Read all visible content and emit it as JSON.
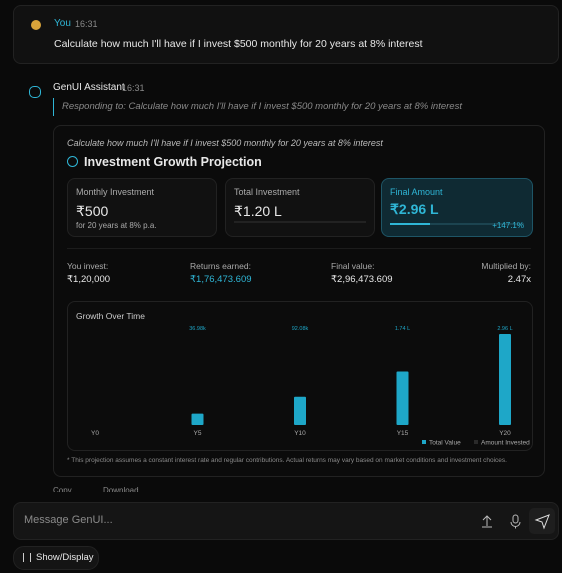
{
  "user": {
    "name": "You",
    "time": "16:31",
    "message": "Calculate how much I'll have if I invest $500 monthly for 20 years at 8% interest"
  },
  "assistant": {
    "name": "GenUI Assistant",
    "time": "16:31",
    "responding_to": "Responding to: Calculate how much I'll have if I invest $500 monthly for 20 years at 8% interest"
  },
  "card": {
    "query": "Calculate how much I'll have if I invest $500 monthly for 20 years at 8% interest",
    "title": "Investment Growth Projection",
    "metrics": [
      {
        "label": "Monthly Investment",
        "value": "₹500",
        "sub": "for 20 years at 8% p.a."
      },
      {
        "label": "Total Investment",
        "value": "₹1.20 L"
      },
      {
        "label": "Final Amount",
        "value": "₹2.96 L",
        "sub": "+147.1%"
      }
    ],
    "stats": [
      {
        "label": "You invest:",
        "value": "₹1,20,000"
      },
      {
        "label": "Returns earned:",
        "value": "₹1,76,473.609"
      },
      {
        "label": "Final value:",
        "value": "₹2,96,473.609"
      },
      {
        "label": "Multiplied by:",
        "value": "2.47x"
      }
    ],
    "chart": {
      "type": "bar",
      "title": "Growth Over Time",
      "categories": [
        "Y0",
        "Y5",
        "Y10",
        "Y15",
        "Y20"
      ],
      "values": [
        0,
        36980,
        92080,
        174000,
        296000
      ],
      "value_labels": [
        null,
        "36.98k",
        "92.08k",
        "1.74 L",
        "2.96 L"
      ],
      "color": "#1ea7c8",
      "series": [
        {
          "name": "Total Value",
          "color": "#1ea7c8"
        },
        {
          "name": "Amount Invested",
          "color": "#2a2a2a"
        }
      ]
    },
    "footnote": "* This projection assumes a constant interest rate and regular contributions. Actual returns may vary based on market conditions and investment choices."
  },
  "actions": [
    "Copy",
    "Download"
  ],
  "input": {
    "placeholder": "Message GenUI..."
  },
  "toolbar": {
    "button": "Show/Display"
  }
}
